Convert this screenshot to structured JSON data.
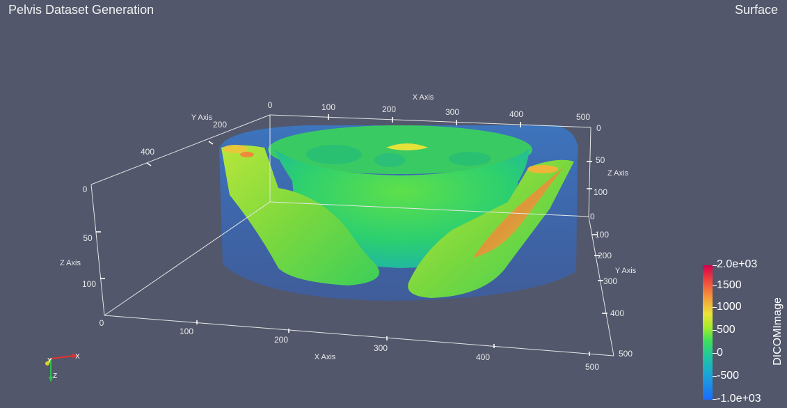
{
  "header": {
    "title": "Pelvis Dataset Generation",
    "mode": "Surface"
  },
  "axes": {
    "x_title": "X Axis",
    "y_title": "Y Axis",
    "z_title": "Z Axis",
    "top_x_ticks": [
      "0",
      "100",
      "200",
      "300",
      "400",
      "500"
    ],
    "bottom_x_ticks": [
      "0",
      "100",
      "200",
      "300",
      "400",
      "500"
    ],
    "left_y_ticks": [
      "200",
      "400"
    ],
    "left_z_ticks": [
      "0",
      "50",
      "100"
    ],
    "right_z_ticks": [
      "0",
      "50",
      "100",
      "0"
    ],
    "right_y_ticks": [
      "100",
      "200",
      "300",
      "400",
      "500"
    ]
  },
  "orientation": {
    "x_label": "X",
    "y_label": "Y",
    "z_label": "Z"
  },
  "colorbar": {
    "title": "DICOMImage",
    "labels": [
      "2.0e+03",
      "1500",
      "1000",
      "500",
      "0",
      "-500",
      "-1.0e+03"
    ]
  }
}
